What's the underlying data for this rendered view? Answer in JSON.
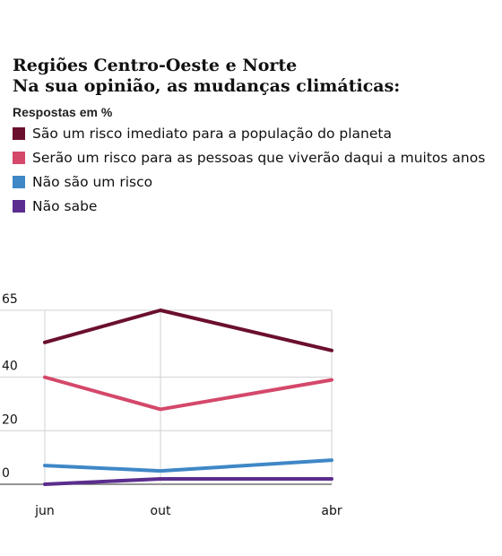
{
  "title_line1": "Regiões Centro-Oeste e Norte",
  "title_line2": "Na sua opinião, as mudanças climáticas:",
  "subtitle": "Respostas em %",
  "chart_data": {
    "type": "line",
    "categories": [
      "jun",
      "out",
      "abr"
    ],
    "yticks": [
      0,
      20,
      40,
      65
    ],
    "ylim": [
      0,
      65
    ],
    "grid": true,
    "legend_position": "top",
    "series": [
      {
        "name": "São um risco imediato para a população do planeta",
        "color": "#6b0f2f",
        "values": [
          53,
          65,
          50
        ]
      },
      {
        "name": "Serão um risco para as pessoas que viverão daqui a muitos anos",
        "color": "#d4486a",
        "values": [
          40,
          28,
          39
        ]
      },
      {
        "name": "Não são um risco",
        "color": "#3f87c6",
        "values": [
          7,
          5,
          9
        ]
      },
      {
        "name": "Não sabe",
        "color": "#5b2d8e",
        "values": [
          0,
          2,
          2
        ]
      }
    ]
  }
}
